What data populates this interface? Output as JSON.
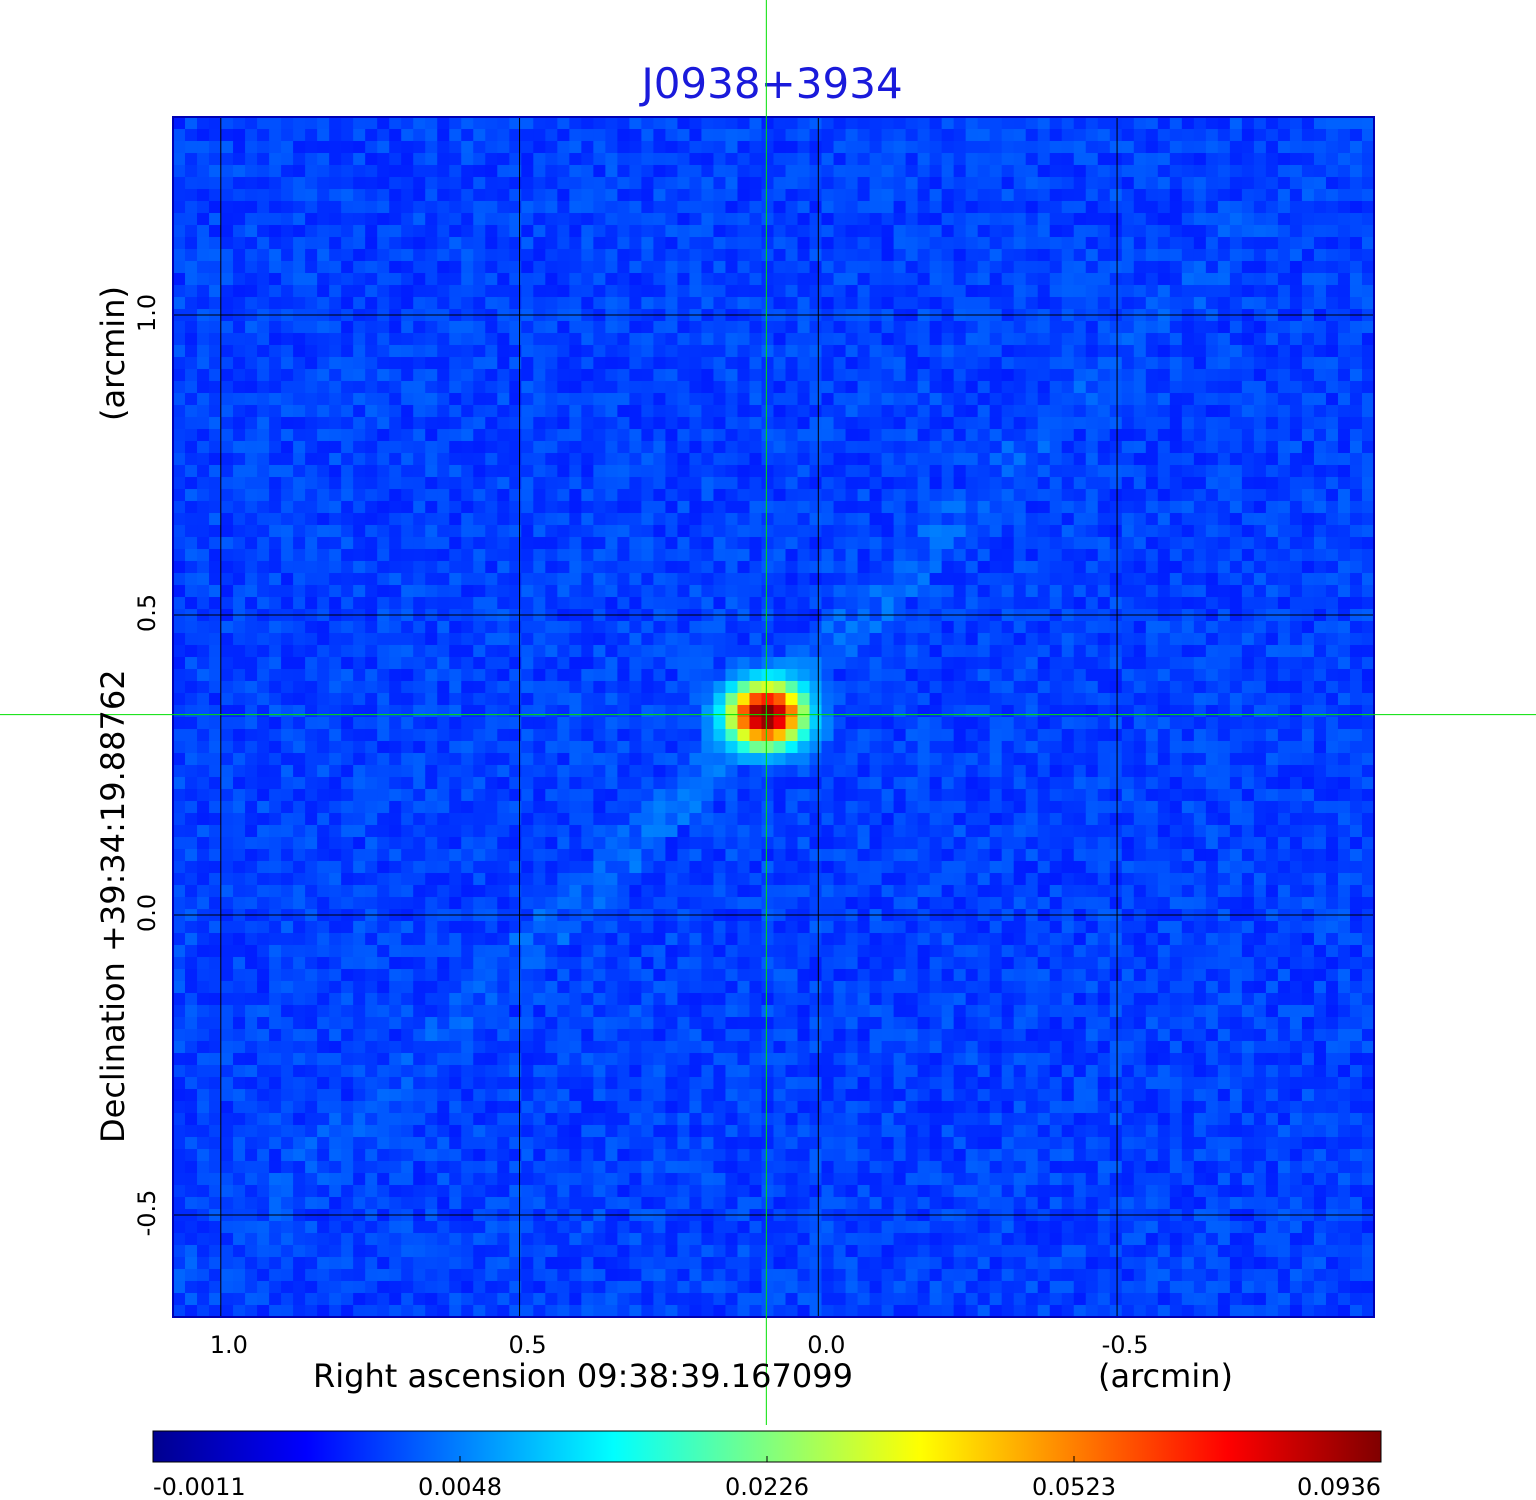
{
  "title": "J0938+3934",
  "chart_data": {
    "type": "heatmap",
    "title": "J0938+3934",
    "xlabel": "Right ascension  09:38:39.167099",
    "xlabel_unit": "(arcmin)",
    "ylabel": "Declination  +39:34:19.88762",
    "ylabel_unit": "(arcmin)",
    "xlim": [
      1.08,
      -0.93
    ],
    "ylim": [
      -0.67,
      1.33
    ],
    "x_ticks": [
      {
        "value": 1.0,
        "label": "1.0"
      },
      {
        "value": 0.5,
        "label": "0.5"
      },
      {
        "value": 0.0,
        "label": "0.0"
      },
      {
        "value": -0.5,
        "label": "-0.5"
      }
    ],
    "y_ticks": [
      {
        "value": 1.0,
        "label": "1.0"
      },
      {
        "value": 0.5,
        "label": "0.5"
      },
      {
        "value": 0.0,
        "label": "0.0"
      },
      {
        "value": -0.5,
        "label": "-0.5"
      }
    ],
    "grid": true,
    "grid_color": "#000000",
    "crosshair": {
      "x": 0.087,
      "y": 0.334,
      "color": "#00e000"
    },
    "source": {
      "x": 0.087,
      "y": 0.334,
      "peak": 0.0936
    },
    "background_level": 0.0033,
    "colorbar": {
      "colormap": "jet",
      "range": [
        -0.0011,
        0.0936
      ],
      "tick_labels": [
        "-0.0011",
        "0.0048",
        "0.0226",
        "0.0523",
        "0.0936"
      ],
      "placement": "bottom"
    }
  }
}
